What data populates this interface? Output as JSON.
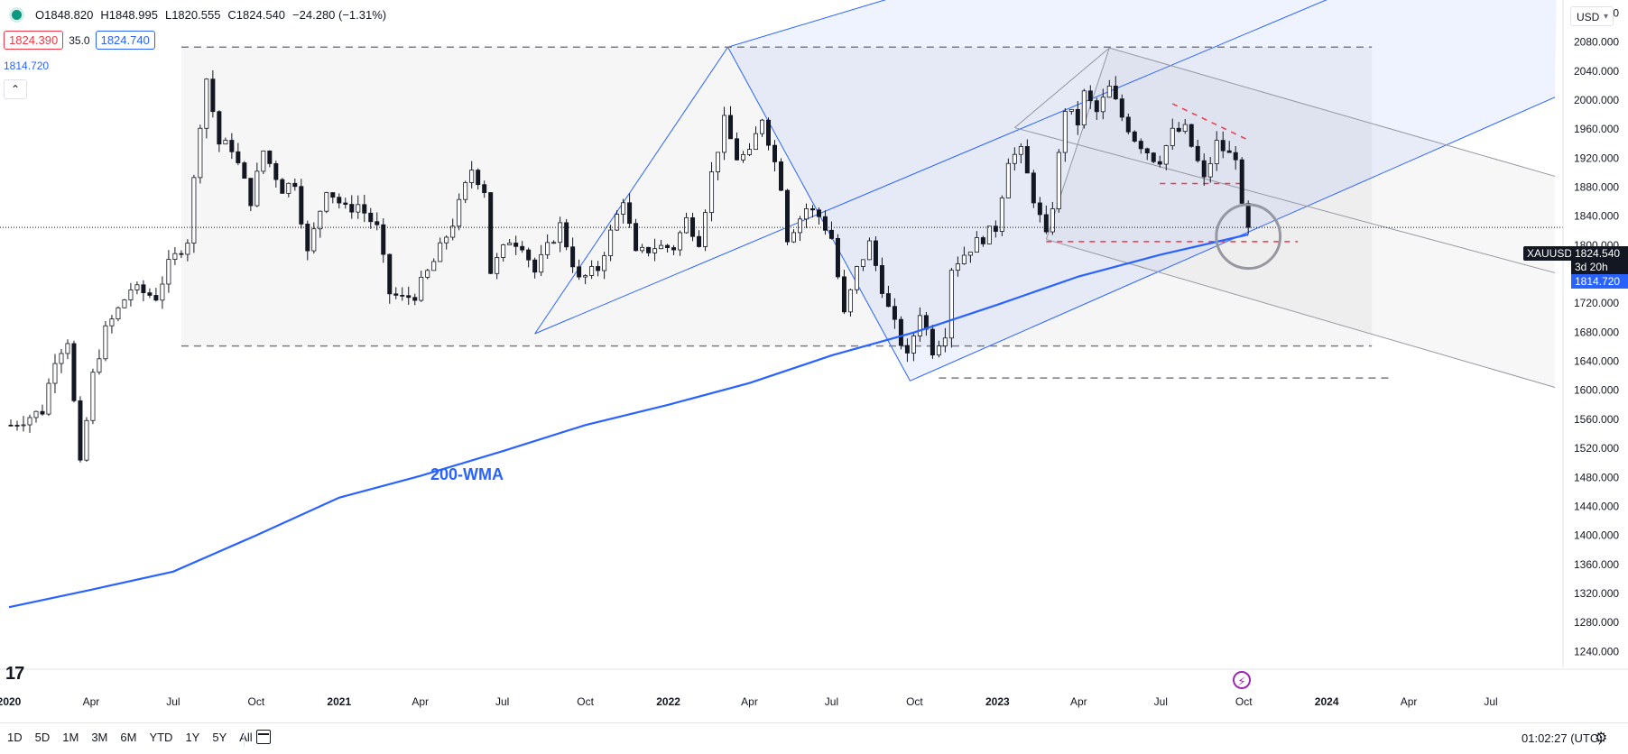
{
  "header": {
    "ohlc": {
      "open": "O1848.820",
      "high": "H1848.995",
      "low": "L1820.555",
      "close": "C1824.540",
      "change": "−24.280 (−1.31%)"
    },
    "sell_price": "1824.390",
    "spread": "35.0",
    "buy_price": "1824.740",
    "ma_value": "1814.720",
    "collapse_glyph": "⌃"
  },
  "currency": "USD",
  "price_tags": {
    "symbol": "XAUUSD",
    "last_price": "1824.540",
    "countdown": "3d 20h",
    "ma_price": "1814.720"
  },
  "annotation": "200-WMA",
  "logo": "17",
  "bottom": {
    "ranges": [
      "1D",
      "5D",
      "1M",
      "3M",
      "6M",
      "YTD",
      "1Y",
      "5Y",
      "All"
    ],
    "time": "01:02:27 (UTC)"
  },
  "colors": {
    "up": "#089981",
    "down": "#131722",
    "ma": "#2962ff",
    "red_dash": "#f23645",
    "text": "#131722"
  },
  "chart_data": {
    "type": "candlestick",
    "symbol": "XAUUSD",
    "interval": "weekly",
    "y_axis": {
      "ticks": [
        2120,
        2080,
        2040,
        2000,
        1960,
        1920,
        1880,
        1840,
        1800,
        1760,
        1720,
        1680,
        1640,
        1600,
        1560,
        1520,
        1480,
        1440,
        1400,
        1360,
        1320,
        1280,
        1240
      ],
      "labels": [
        "2120.000",
        "2080.000",
        "2040.000",
        "2000.000",
        "1960.000",
        "1920.000",
        "1880.000",
        "1840.000",
        "1800.000",
        "1760.000",
        "1720.000",
        "1680.000",
        "1640.000",
        "1600.000",
        "1560.000",
        "1520.000",
        "1480.000",
        "1440.000",
        "1400.000",
        "1360.000",
        "1320.000",
        "1280.000",
        "1240.000"
      ],
      "range": [
        1218,
        2138
      ]
    },
    "x_axis": {
      "range": [
        "2020-01-01",
        "2024-09-12"
      ],
      "ticks": [
        {
          "date": "2020-01-01",
          "label": "2020",
          "bold": true
        },
        {
          "date": "2020-04-01",
          "label": "Apr",
          "bold": false
        },
        {
          "date": "2020-07-01",
          "label": "Jul",
          "bold": false
        },
        {
          "date": "2020-10-01",
          "label": "Oct",
          "bold": false
        },
        {
          "date": "2021-01-01",
          "label": "2021",
          "bold": true
        },
        {
          "date": "2021-04-01",
          "label": "Apr",
          "bold": false
        },
        {
          "date": "2021-07-01",
          "label": "Jul",
          "bold": false
        },
        {
          "date": "2021-10-01",
          "label": "Oct",
          "bold": false
        },
        {
          "date": "2022-01-01",
          "label": "2022",
          "bold": true
        },
        {
          "date": "2022-04-01",
          "label": "Apr",
          "bold": false
        },
        {
          "date": "2022-07-01",
          "label": "Jul",
          "bold": false
        },
        {
          "date": "2022-10-01",
          "label": "Oct",
          "bold": false
        },
        {
          "date": "2023-01-01",
          "label": "2023",
          "bold": true
        },
        {
          "date": "2023-04-01",
          "label": "Apr",
          "bold": false
        },
        {
          "date": "2023-07-01",
          "label": "Jul",
          "bold": false
        },
        {
          "date": "2023-10-01",
          "label": "Oct",
          "bold": false
        },
        {
          "date": "2024-01-01",
          "label": "2024",
          "bold": true
        },
        {
          "date": "2024-04-01",
          "label": "Apr",
          "bold": false
        },
        {
          "date": "2024-07-01",
          "label": "Jul",
          "bold": false
        }
      ]
    },
    "last_price": 1824.54,
    "ma_last": 1814.72,
    "path_points": [
      [
        "2020-01-03",
        1552
      ],
      [
        "2020-02-07",
        1572
      ],
      [
        "2020-02-21",
        1645
      ],
      [
        "2020-03-06",
        1670
      ],
      [
        "2020-03-20",
        1495
      ],
      [
        "2020-04-03",
        1620
      ],
      [
        "2020-04-17",
        1682
      ],
      [
        "2020-05-15",
        1740
      ],
      [
        "2020-06-12",
        1729
      ],
      [
        "2020-06-26",
        1772
      ],
      [
        "2020-07-17",
        1808
      ],
      [
        "2020-07-31",
        1970
      ],
      [
        "2020-08-07",
        2030
      ],
      [
        "2020-08-21",
        1940
      ],
      [
        "2020-09-04",
        1935
      ],
      [
        "2020-09-25",
        1862
      ],
      [
        "2020-10-09",
        1930
      ],
      [
        "2020-10-30",
        1878
      ],
      [
        "2020-11-13",
        1888
      ],
      [
        "2020-11-27",
        1788
      ],
      [
        "2020-12-18",
        1880
      ],
      [
        "2021-01-08",
        1849
      ],
      [
        "2021-01-22",
        1856
      ],
      [
        "2021-02-12",
        1823
      ],
      [
        "2021-02-26",
        1734
      ],
      [
        "2021-03-12",
        1726
      ],
      [
        "2021-03-26",
        1732
      ],
      [
        "2021-04-16",
        1777
      ],
      [
        "2021-05-07",
        1831
      ],
      [
        "2021-05-28",
        1905
      ],
      [
        "2021-06-11",
        1877
      ],
      [
        "2021-06-18",
        1764
      ],
      [
        "2021-07-09",
        1808
      ],
      [
        "2021-07-23",
        1802
      ],
      [
        "2021-08-06",
        1763
      ],
      [
        "2021-08-13",
        1780
      ],
      [
        "2021-09-03",
        1827
      ],
      [
        "2021-09-24",
        1751
      ],
      [
        "2021-10-15",
        1768
      ],
      [
        "2021-11-12",
        1865
      ],
      [
        "2021-11-26",
        1786
      ],
      [
        "2021-12-17",
        1798
      ],
      [
        "2022-01-07",
        1797
      ],
      [
        "2022-01-21",
        1835
      ],
      [
        "2022-02-04",
        1807
      ],
      [
        "2022-02-18",
        1898
      ],
      [
        "2022-03-04",
        1970
      ],
      [
        "2022-03-18",
        1921
      ],
      [
        "2022-04-01",
        1924
      ],
      [
        "2022-04-15",
        1977
      ],
      [
        "2022-05-06",
        1883
      ],
      [
        "2022-05-13",
        1811
      ],
      [
        "2022-06-03",
        1851
      ],
      [
        "2022-06-17",
        1840
      ],
      [
        "2022-07-01",
        1810
      ],
      [
        "2022-07-15",
        1703
      ],
      [
        "2022-07-29",
        1766
      ],
      [
        "2022-08-12",
        1802
      ],
      [
        "2022-09-02",
        1712
      ],
      [
        "2022-09-23",
        1644
      ],
      [
        "2022-10-07",
        1709
      ],
      [
        "2022-10-21",
        1656
      ],
      [
        "2022-11-04",
        1681
      ],
      [
        "2022-11-11",
        1770
      ],
      [
        "2022-12-02",
        1797
      ],
      [
        "2022-12-30",
        1824
      ],
      [
        "2023-01-13",
        1920
      ],
      [
        "2023-01-27",
        1928
      ],
      [
        "2023-02-10",
        1865
      ],
      [
        "2023-02-24",
        1810
      ],
      [
        "2023-03-03",
        1856
      ],
      [
        "2023-03-17",
        1989
      ],
      [
        "2023-03-31",
        1969
      ],
      [
        "2023-04-07",
        2008
      ],
      [
        "2023-04-21",
        1983
      ],
      [
        "2023-05-05",
        2016
      ],
      [
        "2023-05-19",
        1977
      ],
      [
        "2023-06-02",
        1948
      ],
      [
        "2023-06-23",
        1921
      ],
      [
        "2023-06-30",
        1919
      ],
      [
        "2023-07-14",
        1955
      ],
      [
        "2023-07-28",
        1959
      ],
      [
        "2023-08-11",
        1914
      ],
      [
        "2023-08-18",
        1889
      ],
      [
        "2023-08-25",
        1915
      ],
      [
        "2023-09-01",
        1940
      ],
      [
        "2023-09-15",
        1924
      ],
      [
        "2023-09-22",
        1925
      ],
      [
        "2023-09-29",
        1849
      ],
      [
        "2023-10-06",
        1824.54
      ]
    ],
    "ma_200_weekly": [
      [
        "2020-01-01",
        1301
      ],
      [
        "2020-04-01",
        1325
      ],
      [
        "2020-07-01",
        1350
      ],
      [
        "2020-10-01",
        1400
      ],
      [
        "2021-01-01",
        1452
      ],
      [
        "2021-04-01",
        1482
      ],
      [
        "2021-07-01",
        1516
      ],
      [
        "2021-10-01",
        1552
      ],
      [
        "2022-01-01",
        1580
      ],
      [
        "2022-04-01",
        1610
      ],
      [
        "2022-07-01",
        1648
      ],
      [
        "2022-10-01",
        1680
      ],
      [
        "2023-01-01",
        1718
      ],
      [
        "2023-04-01",
        1757
      ],
      [
        "2023-07-01",
        1787
      ],
      [
        "2023-10-06",
        1814.72
      ]
    ],
    "drawings": {
      "consolidation_box": {
        "from": "2020-07-10",
        "to": "2024-02-20",
        "top": 2073,
        "bottom": 1661
      },
      "horizontal_dashed_gray": [
        {
          "from": "2020-07-10",
          "to": "2024-02-20",
          "price": 2073
        },
        {
          "from": "2020-07-10",
          "to": "2024-02-20",
          "price": 1661
        },
        {
          "from": "2022-10-28",
          "to": "2024-03-10",
          "price": 1617
        }
      ],
      "horizontal_dashed_red": [
        {
          "from": "2023-02-24",
          "to": "2023-11-30",
          "price": 1805
        },
        {
          "from": "2023-06-30",
          "to": "2023-09-29",
          "price": 1885
        }
      ],
      "red_dashed_trendline": {
        "from": [
          "2023-07-14",
          1995
        ],
        "to": [
          "2023-10-06",
          1945
        ]
      },
      "blue_pitchfork": {
        "pivots": [
          [
            "2021-08-06",
            1678
          ],
          [
            "2022-03-08",
            2073
          ],
          [
            "2022-09-26",
            1613
          ]
        ],
        "upper_line": [
          [
            "2022-03-08",
            2073
          ],
          [
            "2022-11-01",
            2162
          ]
        ],
        "median": [
          [
            "2021-08-06",
            1678
          ],
          [
            "2024-02-15",
            2162
          ]
        ],
        "lower": [
          [
            "2022-09-26",
            1613
          ],
          [
            "2024-09-10",
            2004
          ]
        ]
      },
      "gray_pitchfork": {
        "pivots": [
          [
            "2023-01-20",
            1962
          ],
          [
            "2023-05-05",
            2072
          ],
          [
            "2023-02-24",
            1808
          ]
        ],
        "lines": [
          [
            [
              "2023-05-05",
              2072
            ],
            [
              "2024-09-10",
              1895
            ]
          ],
          [
            [
              "2023-01-20",
              1962
            ],
            [
              "2024-09-10",
              1762
            ]
          ],
          [
            [
              "2023-02-24",
              1808
            ],
            [
              "2024-09-10",
              1604
            ]
          ]
        ]
      },
      "highlight_circle": {
        "center": [
          "2023-10-06",
          1812
        ],
        "radius_price": 44
      }
    }
  }
}
